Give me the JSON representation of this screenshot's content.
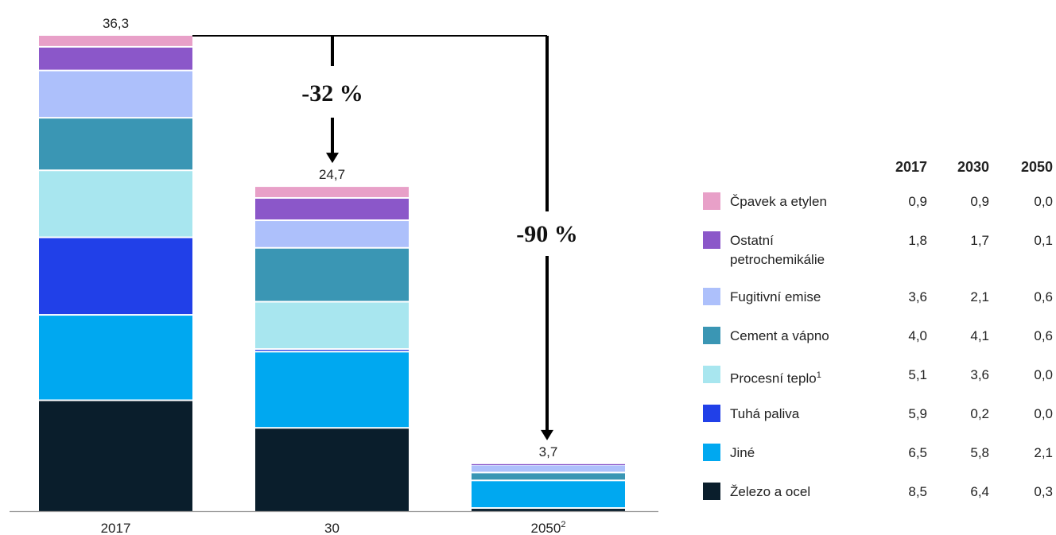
{
  "chart_data": {
    "type": "bar",
    "stacked": true,
    "categories": [
      "2017",
      "30",
      "2050"
    ],
    "category_footnotes": [
      "",
      "",
      "2"
    ],
    "totals": [
      "36,3",
      "24,7",
      "3,7"
    ],
    "series": [
      {
        "name": "Železo a ocel",
        "color": "#0a1e2c",
        "values": [
          8.5,
          6.4,
          0.3
        ],
        "labels": [
          "8,5",
          "6,4",
          "0,3"
        ]
      },
      {
        "name": "Jiné",
        "color": "#00a8f0",
        "values": [
          6.5,
          5.8,
          2.1
        ],
        "labels": [
          "6,5",
          "5,8",
          "2,1"
        ]
      },
      {
        "name": "Tuhá paliva",
        "color": "#2140e8",
        "values": [
          5.9,
          0.2,
          0.0
        ],
        "labels": [
          "5,9",
          "0,2",
          "0,0"
        ]
      },
      {
        "name": "Procesní teplo",
        "footnote": "1",
        "color": "#a8e6ef",
        "values": [
          5.1,
          3.6,
          0.0
        ],
        "labels": [
          "5,1",
          "3,6",
          "0,0"
        ]
      },
      {
        "name": "Cement a vápno",
        "color": "#3a96b4",
        "values": [
          4.0,
          4.1,
          0.6
        ],
        "labels": [
          "4,0",
          "4,1",
          "0,6"
        ]
      },
      {
        "name": "Fugitivní emise",
        "color": "#adc0fb",
        "values": [
          3.6,
          2.1,
          0.6
        ],
        "labels": [
          "3,6",
          "2,1",
          "0,6"
        ]
      },
      {
        "name": "Ostatní petrochemikálie",
        "color": "#8b57c9",
        "values": [
          1.8,
          1.7,
          0.1
        ],
        "labels": [
          "1,8",
          "1,7",
          "0,1"
        ]
      },
      {
        "name": "Čpavek a etylen",
        "color": "#e8a0c8",
        "values": [
          0.9,
          0.9,
          0.0
        ],
        "labels": [
          "0,9",
          "0,9",
          "0,0"
        ]
      }
    ],
    "annotations": [
      {
        "text": "-32 %",
        "from": "2017",
        "to": "30"
      },
      {
        "text": "-90 %",
        "from": "2017",
        "to": "2050"
      }
    ],
    "legend_columns": [
      "2017",
      "2030",
      "2050"
    ],
    "legend_placement": "right",
    "ylim": [
      0,
      36.3
    ],
    "grid": false
  }
}
